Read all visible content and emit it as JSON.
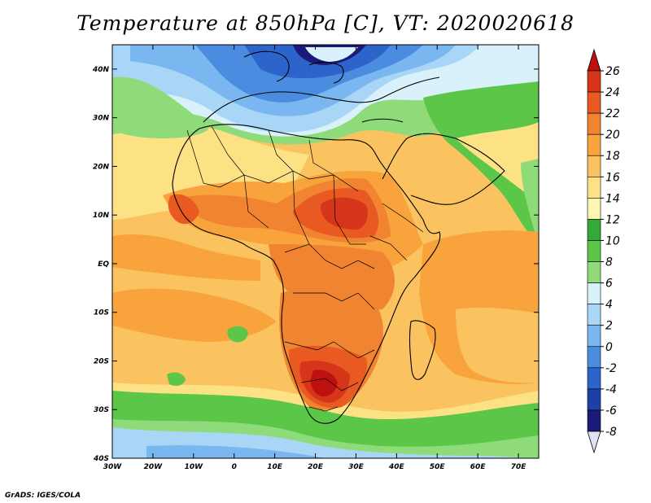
{
  "title": "Temperature at 850hPa [C], VT: 2020020618",
  "credit": "GrADS: IGES/COLA",
  "map": {
    "lon_range": [
      -30,
      75
    ],
    "lat_range": [
      -40,
      45
    ],
    "lon_ticks": [
      "30W",
      "20W",
      "10W",
      "0",
      "10E",
      "20E",
      "30E",
      "40E",
      "50E",
      "60E",
      "70E"
    ],
    "lat_ticks": [
      "40S",
      "30S",
      "20S",
      "10S",
      "EQ",
      "10N",
      "20N",
      "30N",
      "40N"
    ],
    "lon_tick_values": [
      -30,
      -20,
      -10,
      0,
      10,
      20,
      30,
      40,
      50,
      60,
      70
    ],
    "lat_tick_values": [
      -40,
      -30,
      -20,
      -10,
      0,
      10,
      20,
      30,
      40
    ]
  },
  "colorbar": {
    "labels": [
      "26",
      "24",
      "22",
      "20",
      "18",
      "16",
      "14",
      "12",
      "10",
      "8",
      "6",
      "4",
      "2",
      "0",
      "-2",
      "-4",
      "-6",
      "-8"
    ],
    "level_colors": [
      "#1b1a7a",
      "#1e3fa8",
      "#2d64cc",
      "#4a8de0",
      "#7ab6ef",
      "#a9d6f7",
      "#d8f1fb",
      "#8fdb7a",
      "#5cc649",
      "#35a83a",
      "#fbf6b4",
      "#fde185",
      "#fbc35f",
      "#f8a33c",
      "#f08430",
      "#e85a22",
      "#d7351a",
      "#bf1010"
    ]
  },
  "chart_data": {
    "type": "heatmap",
    "title": "Temperature at 850hPa [C], VT: 2020020618",
    "valid_time": "2020020618",
    "units": "C",
    "x_axis": {
      "range": [
        -30,
        75
      ],
      "ticks": [
        -30,
        -20,
        -10,
        0,
        10,
        20,
        30,
        40,
        50,
        60,
        70
      ]
    },
    "y_axis": {
      "range": [
        -40,
        45
      ],
      "ticks": [
        -40,
        -30,
        -20,
        -10,
        0,
        10,
        20,
        30,
        40
      ]
    },
    "color_levels": [
      -8,
      -6,
      -4,
      -2,
      0,
      2,
      4,
      6,
      8,
      10,
      12,
      14,
      16,
      18,
      20,
      22,
      24,
      26
    ]
  }
}
